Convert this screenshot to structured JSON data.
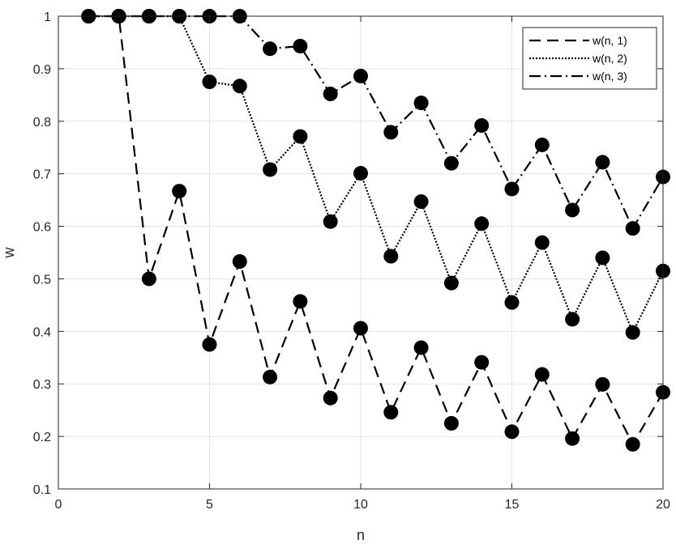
{
  "chart_data": {
    "type": "line",
    "xlabel": "n",
    "ylabel": "w",
    "xlim": [
      0,
      20
    ],
    "ylim": [
      0.1,
      1
    ],
    "xticks": [
      0,
      5,
      10,
      15,
      20
    ],
    "yticks": [
      0.1,
      0.2,
      0.3,
      0.4,
      0.5,
      0.6,
      0.7,
      0.8,
      0.9,
      1
    ],
    "grid": true,
    "legend_position": "top-right",
    "x": [
      1,
      2,
      3,
      4,
      5,
      6,
      7,
      8,
      9,
      10,
      11,
      12,
      13,
      14,
      15,
      16,
      17,
      18,
      19,
      20
    ],
    "series": [
      {
        "name": "w(n, 1)",
        "line_style": "dashed",
        "values": [
          1,
          1,
          0.5,
          0.667,
          0.375,
          0.533,
          0.313,
          0.457,
          0.273,
          0.406,
          0.246,
          0.369,
          0.225,
          0.341,
          0.209,
          0.318,
          0.196,
          0.299,
          0.185,
          0.284
        ]
      },
      {
        "name": "w(n, 2)",
        "line_style": "dotted",
        "values": [
          1,
          1,
          1,
          1,
          0.875,
          0.867,
          0.708,
          0.771,
          0.609,
          0.701,
          0.543,
          0.647,
          0.492,
          0.605,
          0.455,
          0.569,
          0.423,
          0.54,
          0.398,
          0.515
        ]
      },
      {
        "name": "w(n, 3)",
        "line_style": "dashdot",
        "values": [
          1,
          1,
          1,
          1,
          1,
          1,
          0.938,
          0.943,
          0.852,
          0.886,
          0.779,
          0.835,
          0.72,
          0.792,
          0.671,
          0.755,
          0.631,
          0.722,
          0.596,
          0.694
        ]
      }
    ],
    "colors": {
      "line": "#000000",
      "marker": "#000000",
      "grid": "#e3e3e3",
      "axis": "#262626"
    }
  }
}
